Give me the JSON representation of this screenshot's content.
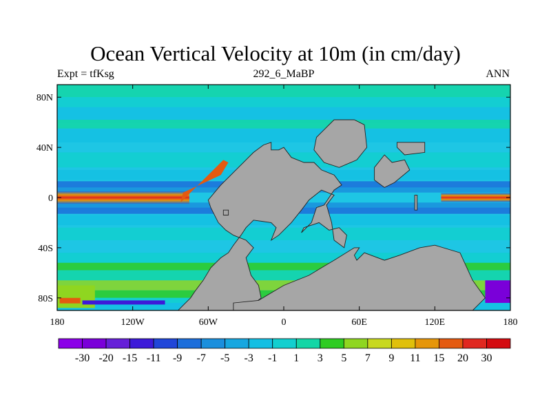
{
  "title": "Ocean Vertical Velocity at 10m (in cm/day)",
  "subtitles": {
    "left": "Expt = tfKsg",
    "center": "292_6_MaBP",
    "right": "ANN"
  },
  "axes": {
    "lat_ticks": [
      {
        "label": "80N",
        "lat": 80
      },
      {
        "label": "40N",
        "lat": 40
      },
      {
        "label": "0",
        "lat": 0
      },
      {
        "label": "40S",
        "lat": -40
      },
      {
        "label": "80S",
        "lat": -80
      }
    ],
    "lon_ticks": [
      {
        "label": "180",
        "lon": -180
      },
      {
        "label": "120W",
        "lon": -120
      },
      {
        "label": "60W",
        "lon": -60
      },
      {
        "label": "0",
        "lon": 0
      },
      {
        "label": "60E",
        "lon": 60
      },
      {
        "label": "120E",
        "lon": 120
      },
      {
        "label": "180",
        "lon": 180
      }
    ],
    "lat_range": [
      -90,
      90
    ],
    "lon_range": [
      -180,
      180
    ]
  },
  "colorbar": {
    "labels": [
      "-30",
      "-20",
      "-15",
      "-11",
      "-9",
      "-7",
      "-5",
      "-3",
      "-1",
      "1",
      "3",
      "5",
      "7",
      "9",
      "11",
      "15",
      "20",
      "30"
    ],
    "colors": [
      "#8b00e8",
      "#7a00d9",
      "#6620d8",
      "#3d1ad9",
      "#2046d9",
      "#1c6edb",
      "#1a8fdd",
      "#16a7e0",
      "#14bfe3",
      "#12cfcf",
      "#14d6a6",
      "#2ecc22",
      "#8fd620",
      "#c8d81e",
      "#e0c00c",
      "#e6960a",
      "#e45a10",
      "#e02820",
      "#d40b10"
    ]
  },
  "colors": {
    "background": "#1ec6e4",
    "land": "#a6a6a6",
    "coast": "#222222"
  }
}
